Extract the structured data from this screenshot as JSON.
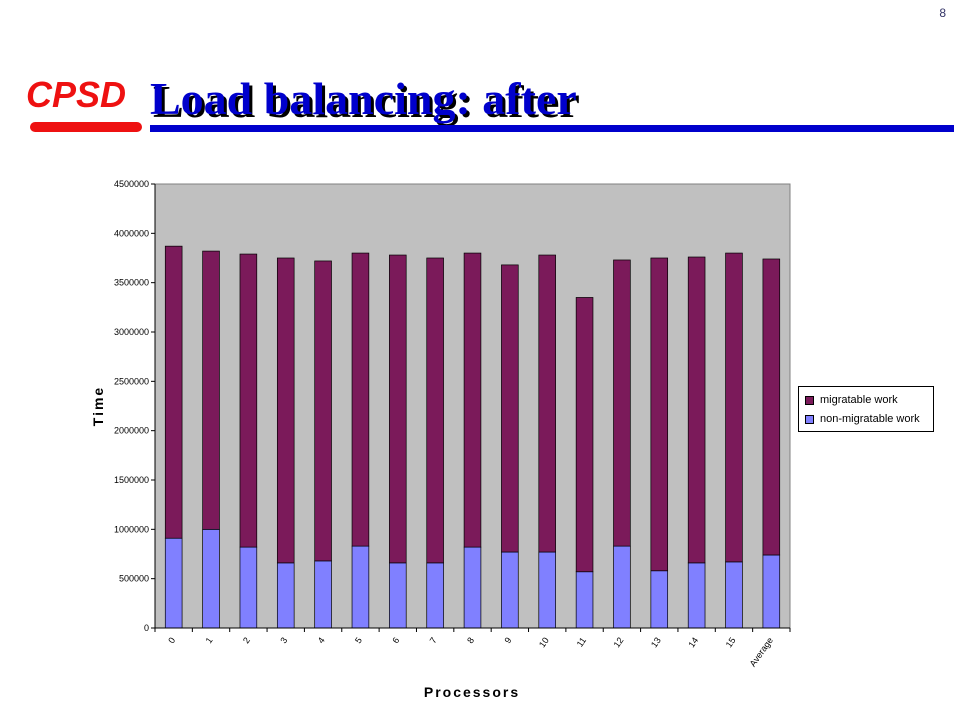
{
  "slide": {
    "page_number": "8",
    "logo": "CPSD",
    "title": "Load balancing: after"
  },
  "colors": {
    "title": "#0000cc",
    "logo": "#ee1111",
    "plot_background": "#c0c0c0",
    "migratable": "#7b1a5a",
    "non_migratable": "#8080ff"
  },
  "chart_data": {
    "type": "bar",
    "stacked": true,
    "xlabel": "Processors",
    "ylabel": "Time",
    "ylim": [
      0,
      4500000
    ],
    "yticks": [
      0,
      500000,
      1000000,
      1500000,
      2000000,
      2500000,
      3000000,
      3500000,
      4000000,
      4500000
    ],
    "grid": false,
    "legend_position": "right",
    "categories": [
      "0",
      "1",
      "2",
      "3",
      "4",
      "5",
      "6",
      "7",
      "8",
      "9",
      "10",
      "11",
      "12",
      "13",
      "14",
      "15",
      "Average"
    ],
    "series": [
      {
        "name": "non-migratable work",
        "values": [
          910000,
          1000000,
          820000,
          660000,
          680000,
          830000,
          660000,
          660000,
          820000,
          770000,
          770000,
          570000,
          830000,
          580000,
          660000,
          670000,
          740000
        ]
      },
      {
        "name": "migratable work",
        "values": [
          2960000,
          2820000,
          2970000,
          3090000,
          3040000,
          2970000,
          3120000,
          3090000,
          2980000,
          2910000,
          3010000,
          2780000,
          2900000,
          3170000,
          3100000,
          3130000,
          3000000
        ]
      }
    ]
  }
}
